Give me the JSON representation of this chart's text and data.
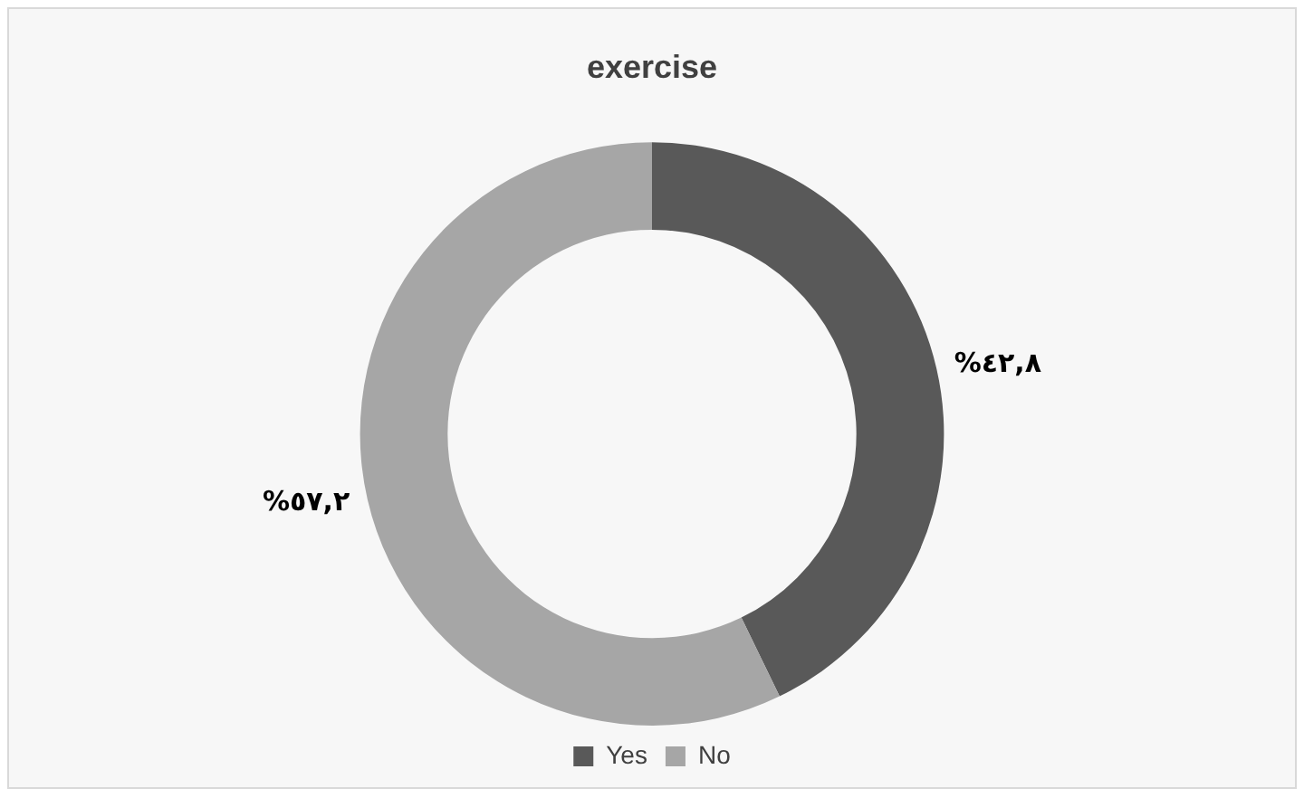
{
  "chart_data": {
    "type": "donut",
    "title": "exercise",
    "categories": [
      "Yes",
      "No"
    ],
    "values": [
      42.8,
      57.2
    ],
    "colors": [
      "#595959",
      "#a6a6a6"
    ],
    "value_labels": [
      "%٤٢,٨",
      "%٥٧,٢"
    ],
    "legend": "bottom"
  }
}
